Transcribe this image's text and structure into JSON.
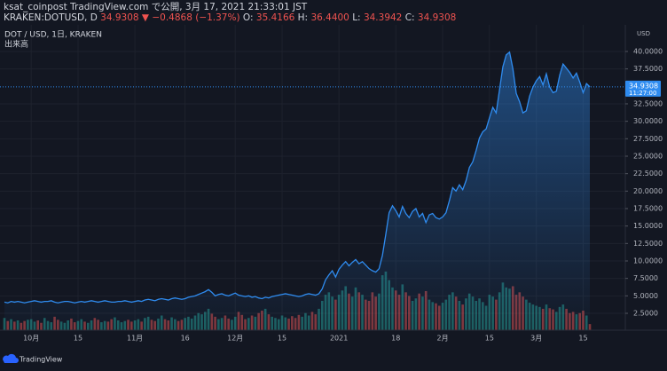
{
  "header": {
    "publisher": "ksat_coinpost TradingView.com で公開, 3月 17, 2021 21:33:01 JST",
    "symbol": "KRAKEN:DOTUSD, D",
    "price": "34.9308",
    "arrow": "▼",
    "change": "−0.4868 (−1.37%)",
    "quote": [
      {
        "label": "O:",
        "value": "35.4166"
      },
      {
        "label": "H:",
        "value": "36.4400"
      },
      {
        "label": "L:",
        "value": "34.3942"
      },
      {
        "label": "C:",
        "value": "34.9308"
      }
    ]
  },
  "chart_data": {
    "type": "area",
    "legend": "DOT / USD, 1日, KRAKEN",
    "volume_label": "出来高",
    "axis_unit": "USD",
    "footer": "TradingView",
    "last_price": 34.9308,
    "countdown": "11:27:00",
    "grid": true,
    "categories": [
      null,
      null,
      null,
      null,
      null,
      null,
      null,
      null,
      "10月",
      null,
      null,
      null,
      null,
      null,
      null,
      null,
      null,
      null,
      null,
      null,
      null,
      null,
      "15",
      null,
      null,
      null,
      null,
      null,
      null,
      null,
      null,
      null,
      null,
      null,
      null,
      null,
      null,
      null,
      null,
      "11月",
      null,
      null,
      null,
      null,
      null,
      null,
      null,
      null,
      null,
      null,
      null,
      null,
      null,
      null,
      "16",
      null,
      null,
      null,
      null,
      null,
      null,
      null,
      null,
      null,
      null,
      null,
      null,
      null,
      null,
      "12月",
      null,
      null,
      null,
      null,
      null,
      null,
      null,
      null,
      null,
      null,
      null,
      null,
      null,
      "15",
      null,
      null,
      null,
      null,
      null,
      null,
      null,
      null,
      null,
      null,
      null,
      null,
      null,
      null,
      null,
      null,
      "2021",
      null,
      null,
      null,
      null,
      null,
      null,
      null,
      null,
      null,
      null,
      null,
      null,
      null,
      null,
      null,
      null,
      "18",
      null,
      null,
      null,
      null,
      null,
      null,
      null,
      null,
      null,
      null,
      null,
      null,
      null,
      "2月",
      null,
      null,
      null,
      null,
      null,
      null,
      null,
      null,
      null,
      null,
      null,
      null,
      null,
      "15",
      null,
      null,
      null,
      null,
      null,
      null,
      null,
      null,
      null,
      null,
      null,
      null,
      null,
      "3月",
      null,
      null,
      null,
      null,
      null,
      null,
      null,
      null,
      null,
      null,
      null,
      null,
      null,
      "15",
      null,
      null
    ],
    "series": [
      {
        "name": "DOT / USD",
        "color": "#2f8cf0",
        "values": [
          4.1,
          4.0,
          4.2,
          4.1,
          4.2,
          4.1,
          4.0,
          4.1,
          4.2,
          4.3,
          4.2,
          4.1,
          4.2,
          4.2,
          4.3,
          4.1,
          4.0,
          4.1,
          4.2,
          4.2,
          4.1,
          4.0,
          4.1,
          4.2,
          4.1,
          4.2,
          4.3,
          4.2,
          4.1,
          4.2,
          4.3,
          4.2,
          4.1,
          4.1,
          4.2,
          4.2,
          4.3,
          4.2,
          4.1,
          4.2,
          4.3,
          4.2,
          4.4,
          4.5,
          4.4,
          4.3,
          4.5,
          4.6,
          4.5,
          4.4,
          4.6,
          4.7,
          4.6,
          4.5,
          4.6,
          4.8,
          4.9,
          5.0,
          5.2,
          5.4,
          5.6,
          5.9,
          5.5,
          5.0,
          5.2,
          5.3,
          5.1,
          5.0,
          5.2,
          5.4,
          5.1,
          5.0,
          4.9,
          5.0,
          4.8,
          4.9,
          4.7,
          4.6,
          4.8,
          4.7,
          4.9,
          5.0,
          5.1,
          5.2,
          5.3,
          5.2,
          5.1,
          5.0,
          4.9,
          5.0,
          5.2,
          5.3,
          5.2,
          5.1,
          5.3,
          6.0,
          7.3,
          8.0,
          8.6,
          7.7,
          8.8,
          9.4,
          9.9,
          9.3,
          9.8,
          10.2,
          9.6,
          9.9,
          9.4,
          8.9,
          8.6,
          8.4,
          8.9,
          10.8,
          13.8,
          16.9,
          17.9,
          17.2,
          16.3,
          17.8,
          16.8,
          16.2,
          17.1,
          17.5,
          16.3,
          16.8,
          15.5,
          16.6,
          16.8,
          16.2,
          16.0,
          16.3,
          16.9,
          18.6,
          20.5,
          20.0,
          20.9,
          20.2,
          21.5,
          23.4,
          24.2,
          25.8,
          27.6,
          28.5,
          28.9,
          30.5,
          32.0,
          31.2,
          34.5,
          37.8,
          39.5,
          39.9,
          37.5,
          34.0,
          32.8,
          31.2,
          31.5,
          33.6,
          34.9,
          35.8,
          36.4,
          35.2,
          36.8,
          34.9,
          34.1,
          34.3,
          36.6,
          38.2,
          37.6,
          37.0,
          36.2,
          36.9,
          35.6,
          34.1,
          35.4,
          34.9308
        ]
      },
      {
        "name": "出来高",
        "axis": "y2",
        "up_color": "#26a69a",
        "down_color": "#ef5350",
        "values": [
          20,
          15,
          18,
          14,
          16,
          12,
          15,
          17,
          18,
          14,
          16,
          12,
          20,
          15,
          13,
          22,
          17,
          14,
          12,
          16,
          19,
          13,
          15,
          18,
          14,
          12,
          16,
          20,
          17,
          13,
          15,
          14,
          18,
          21,
          16,
          13,
          15,
          17,
          14,
          16,
          18,
          14,
          20,
          22,
          17,
          15,
          19,
          24,
          18,
          16,
          21,
          18,
          15,
          17,
          20,
          22,
          19,
          24,
          28,
          26,
          30,
          35,
          27,
          22,
          18,
          20,
          24,
          19,
          17,
          22,
          30,
          25,
          18,
          20,
          24,
          22,
          28,
          32,
          35,
          26,
          22,
          20,
          18,
          24,
          21,
          19,
          23,
          20,
          25,
          22,
          28,
          24,
          30,
          26,
          35,
          48,
          58,
          62,
          55,
          50,
          58,
          65,
          72,
          60,
          55,
          70,
          62,
          58,
          50,
          48,
          62,
          55,
          60,
          90,
          96,
          82,
          70,
          65,
          58,
          75,
          62,
          56,
          48,
          52,
          60,
          55,
          64,
          50,
          46,
          44,
          40,
          45,
          50,
          58,
          62,
          55,
          48,
          42,
          52,
          60,
          55,
          48,
          52,
          46,
          40,
          58,
          55,
          50,
          62,
          78,
          70,
          68,
          72,
          58,
          62,
          55,
          50,
          45,
          42,
          40,
          38,
          35,
          42,
          36,
          34,
          30,
          38,
          42,
          35,
          28,
          30,
          26,
          28,
          32,
          24,
          10
        ]
      }
    ],
    "ylim": [
      0.085,
      43.81
    ],
    "y2lim": [
      0,
      500
    ],
    "yticks": [
      {
        "value": 2.5,
        "label": "2.5000"
      },
      {
        "value": 5,
        "label": "5.0000"
      },
      {
        "value": 7.5,
        "label": "7.5000"
      },
      {
        "value": 10,
        "label": "10.0000"
      },
      {
        "value": 12.5,
        "label": "12.5000"
      },
      {
        "value": 15,
        "label": "15.0000"
      },
      {
        "value": 17.5,
        "label": "17.5000"
      },
      {
        "value": 20,
        "label": "20.0000"
      },
      {
        "value": 22.5,
        "label": "22.5000"
      },
      {
        "value": 25,
        "label": "25.0000"
      },
      {
        "value": 27.5,
        "label": "27.5000"
      },
      {
        "value": 30,
        "label": "30.0000"
      },
      {
        "value": 32.5,
        "label": "32.5000"
      },
      {
        "value": 37.5,
        "label": "37.5000"
      },
      {
        "value": 40,
        "label": "40.0000"
      }
    ]
  }
}
